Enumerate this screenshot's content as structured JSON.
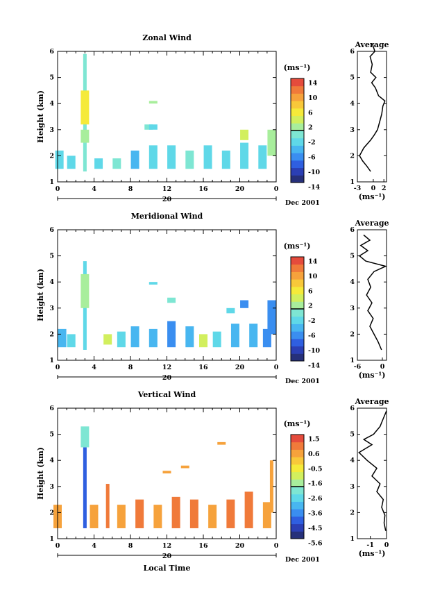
{
  "figure": {
    "date_label": "Dec 2001",
    "xlabel": "Local Time",
    "day_label": "20",
    "avg_title": "Average",
    "ylabel": "Height (km)",
    "unit": "(ms⁻¹)"
  },
  "panels": [
    {
      "title": "Zonal Wind",
      "colorbar_ticks": [
        "14",
        "10",
        "6",
        "2",
        "-2",
        "-6",
        "-10",
        "-14"
      ],
      "avg_xticks": [
        "-3",
        "0",
        "2"
      ]
    },
    {
      "title": "Meridional Wind",
      "colorbar_ticks": [
        "14",
        "10",
        "6",
        "2",
        "-2",
        "-6",
        "-10",
        "-14"
      ],
      "avg_xticks": [
        "-6",
        "0"
      ]
    },
    {
      "title": "Vertical Wind",
      "colorbar_ticks": [
        "1.5",
        "0.6",
        "-0.5",
        "-1.6",
        "-2.6",
        "-3.6",
        "-4.5",
        "-5.6"
      ],
      "avg_xticks": [
        "-1",
        "0"
      ]
    }
  ],
  "chart_data": [
    {
      "type": "heatmap",
      "title": "Zonal Wind",
      "xlabel": "",
      "ylabel": "Height (km)",
      "x_ticks": [
        "0",
        "4",
        "8",
        "12",
        "16",
        "20",
        "0"
      ],
      "x_range_hours": [
        0,
        24
      ],
      "y_ticks": [
        "1",
        "2",
        "3",
        "4",
        "5",
        "6"
      ],
      "ylim": [
        1,
        6
      ],
      "colorbar_unit": "(ms⁻¹)",
      "colorbar_range": [
        -16,
        16
      ],
      "cells": [
        {
          "t": 3.0,
          "h0": 1.4,
          "h1": 5.9,
          "v": -2
        },
        {
          "t": 3.0,
          "h0": 3.2,
          "h1": 4.5,
          "v": 6
        },
        {
          "t": 3.0,
          "h0": 2.5,
          "h1": 3.0,
          "v": 2
        },
        {
          "t": 0.2,
          "h0": 1.5,
          "h1": 2.2,
          "v": -3
        },
        {
          "t": 1.5,
          "h0": 1.5,
          "h1": 2.0,
          "v": -4
        },
        {
          "t": 4.5,
          "h0": 1.5,
          "h1": 1.9,
          "v": -3
        },
        {
          "t": 6.5,
          "h0": 1.5,
          "h1": 1.9,
          "v": -2
        },
        {
          "t": 8.5,
          "h0": 1.5,
          "h1": 2.2,
          "v": -5
        },
        {
          "t": 10.5,
          "h0": 1.5,
          "h1": 2.4,
          "v": -4
        },
        {
          "t": 12.5,
          "h0": 1.5,
          "h1": 2.4,
          "v": -3
        },
        {
          "t": 14.5,
          "h0": 1.5,
          "h1": 2.2,
          "v": -2
        },
        {
          "t": 16.5,
          "h0": 1.5,
          "h1": 2.4,
          "v": -3
        },
        {
          "t": 18.5,
          "h0": 1.5,
          "h1": 2.2,
          "v": -4
        },
        {
          "t": 20.5,
          "h0": 1.5,
          "h1": 2.5,
          "v": -3
        },
        {
          "t": 22.5,
          "h0": 1.5,
          "h1": 2.4,
          "v": -3
        },
        {
          "t": 10.0,
          "h0": 3.0,
          "h1": 3.2,
          "v": -2
        },
        {
          "t": 10.5,
          "h0": 3.0,
          "h1": 3.2,
          "v": -3
        },
        {
          "t": 10.5,
          "h0": 4.0,
          "h1": 4.1,
          "v": 2
        },
        {
          "t": 20.5,
          "h0": 2.6,
          "h1": 3.0,
          "v": 4
        },
        {
          "t": 23.5,
          "h0": 2.0,
          "h1": 3.0,
          "v": 2
        }
      ]
    },
    {
      "type": "heatmap",
      "title": "Meridional Wind",
      "xlabel": "",
      "ylabel": "Height (km)",
      "x_ticks": [
        "0",
        "4",
        "8",
        "12",
        "16",
        "20",
        "0"
      ],
      "x_range_hours": [
        0,
        24
      ],
      "y_ticks": [
        "1",
        "2",
        "3",
        "4",
        "5",
        "6"
      ],
      "ylim": [
        1,
        6
      ],
      "colorbar_unit": "(ms⁻¹)",
      "colorbar_range": [
        -16,
        16
      ],
      "cells": [
        {
          "t": 3.0,
          "h0": 1.4,
          "h1": 4.8,
          "v": -4
        },
        {
          "t": 3.0,
          "h0": 3.0,
          "h1": 4.3,
          "v": 0
        },
        {
          "t": 0.5,
          "h0": 1.5,
          "h1": 2.2,
          "v": -5
        },
        {
          "t": 1.5,
          "h0": 1.5,
          "h1": 2.0,
          "v": -4
        },
        {
          "t": 5.5,
          "h0": 1.6,
          "h1": 2.0,
          "v": 4
        },
        {
          "t": 7.0,
          "h0": 1.5,
          "h1": 2.1,
          "v": -3
        },
        {
          "t": 8.5,
          "h0": 1.5,
          "h1": 2.3,
          "v": -6
        },
        {
          "t": 10.5,
          "h0": 1.5,
          "h1": 2.2,
          "v": -5
        },
        {
          "t": 12.5,
          "h0": 1.5,
          "h1": 2.5,
          "v": -7
        },
        {
          "t": 14.5,
          "h0": 1.5,
          "h1": 2.3,
          "v": -5
        },
        {
          "t": 16.0,
          "h0": 1.5,
          "h1": 2.0,
          "v": 3
        },
        {
          "t": 17.5,
          "h0": 1.5,
          "h1": 2.1,
          "v": -4
        },
        {
          "t": 19.5,
          "h0": 1.5,
          "h1": 2.4,
          "v": -6
        },
        {
          "t": 21.5,
          "h0": 1.5,
          "h1": 2.4,
          "v": -5
        },
        {
          "t": 23.0,
          "h0": 1.5,
          "h1": 2.2,
          "v": -8
        },
        {
          "t": 10.5,
          "h0": 3.9,
          "h1": 4.0,
          "v": -3
        },
        {
          "t": 12.5,
          "h0": 3.2,
          "h1": 3.4,
          "v": -2
        },
        {
          "t": 19.0,
          "h0": 2.8,
          "h1": 3.0,
          "v": -4
        },
        {
          "t": 20.5,
          "h0": 3.0,
          "h1": 3.3,
          "v": -7
        },
        {
          "t": 23.5,
          "h0": 2.0,
          "h1": 3.3,
          "v": -8
        }
      ]
    },
    {
      "type": "heatmap",
      "title": "Vertical Wind",
      "xlabel": "Local Time",
      "ylabel": "Height (km)",
      "x_ticks": [
        "0",
        "4",
        "8",
        "12",
        "16",
        "20",
        "0"
      ],
      "x_range_hours": [
        0,
        24
      ],
      "y_ticks": [
        "1",
        "2",
        "3",
        "4",
        "5",
        "6"
      ],
      "ylim": [
        1,
        6
      ],
      "colorbar_unit": "(ms⁻¹)",
      "colorbar_range": [
        -6,
        2
      ],
      "cells": [
        {
          "t": 0.0,
          "h0": 1.4,
          "h1": 2.3,
          "v": 0.8
        },
        {
          "t": 3.0,
          "h0": 1.4,
          "h1": 4.5,
          "v": -4.8
        },
        {
          "t": 3.0,
          "h0": 4.5,
          "h1": 5.3,
          "v": -2.5
        },
        {
          "t": 4.0,
          "h0": 1.4,
          "h1": 2.3,
          "v": 0.6
        },
        {
          "t": 5.5,
          "h0": 1.4,
          "h1": 3.1,
          "v": 1.3
        },
        {
          "t": 7.0,
          "h0": 1.4,
          "h1": 2.3,
          "v": 0.7
        },
        {
          "t": 9.0,
          "h0": 1.4,
          "h1": 2.5,
          "v": 0.9
        },
        {
          "t": 11.0,
          "h0": 1.4,
          "h1": 2.3,
          "v": 0.7
        },
        {
          "t": 13.0,
          "h0": 1.4,
          "h1": 2.6,
          "v": 1.0
        },
        {
          "t": 15.0,
          "h0": 1.4,
          "h1": 2.5,
          "v": 1.1
        },
        {
          "t": 17.0,
          "h0": 1.4,
          "h1": 2.3,
          "v": 0.8
        },
        {
          "t": 19.0,
          "h0": 1.4,
          "h1": 2.5,
          "v": 0.9
        },
        {
          "t": 21.0,
          "h0": 1.4,
          "h1": 2.8,
          "v": 1.1
        },
        {
          "t": 23.0,
          "h0": 1.4,
          "h1": 2.4,
          "v": 0.8
        },
        {
          "t": 12.0,
          "h0": 3.5,
          "h1": 3.6,
          "v": 0.6
        },
        {
          "t": 14.0,
          "h0": 3.7,
          "h1": 3.8,
          "v": 0.6
        },
        {
          "t": 18.0,
          "h0": 4.6,
          "h1": 4.7,
          "v": 0.8
        },
        {
          "t": 23.5,
          "h0": 2.0,
          "h1": 4.0,
          "v": 0.5
        }
      ]
    }
  ],
  "average_profiles": [
    {
      "panel": "Zonal Wind",
      "x_ticks": [
        "-3",
        "0",
        "2"
      ],
      "xlim": [
        -3,
        2.5
      ],
      "y_ticks": [
        "1",
        "2",
        "3",
        "4",
        "5",
        "6"
      ],
      "ylim": [
        1,
        6
      ],
      "xlabel": "(ms⁻¹)",
      "points": [
        [
          -0.5,
          1.4
        ],
        [
          -1.2,
          1.6
        ],
        [
          -2.0,
          1.8
        ],
        [
          -2.6,
          2.0
        ],
        [
          -1.8,
          2.3
        ],
        [
          -0.5,
          2.6
        ],
        [
          0.2,
          2.8
        ],
        [
          0.8,
          3.0
        ],
        [
          1.2,
          3.3
        ],
        [
          1.6,
          3.6
        ],
        [
          1.8,
          3.9
        ],
        [
          2.2,
          4.1
        ],
        [
          1.0,
          4.3
        ],
        [
          0.4,
          4.6
        ],
        [
          -0.3,
          4.8
        ],
        [
          0.5,
          5.0
        ],
        [
          -0.5,
          5.2
        ],
        [
          -0.2,
          5.5
        ],
        [
          -0.6,
          5.8
        ],
        [
          0.3,
          6.0
        ],
        [
          -0.2,
          6.3
        ]
      ]
    },
    {
      "panel": "Meridional Wind",
      "x_ticks": [
        "-6",
        "0"
      ],
      "xlim": [
        -6,
        1
      ],
      "y_ticks": [
        "1",
        "2",
        "3",
        "4",
        "5",
        "6"
      ],
      "ylim": [
        1,
        6
      ],
      "xlabel": "(ms⁻¹)",
      "points": [
        [
          -0.2,
          1.4
        ],
        [
          -1.0,
          1.7
        ],
        [
          -2.0,
          2.0
        ],
        [
          -3.0,
          2.3
        ],
        [
          -2.2,
          2.6
        ],
        [
          -3.5,
          2.9
        ],
        [
          -2.5,
          3.2
        ],
        [
          -3.8,
          3.5
        ],
        [
          -2.8,
          3.8
        ],
        [
          -3.5,
          4.1
        ],
        [
          -2.0,
          4.4
        ],
        [
          0.8,
          4.6
        ],
        [
          -4.0,
          4.8
        ],
        [
          -5.5,
          5.0
        ],
        [
          -3.5,
          5.2
        ],
        [
          -5.2,
          5.4
        ],
        [
          -3.0,
          5.6
        ],
        [
          -4.5,
          5.8
        ]
      ]
    },
    {
      "panel": "Vertical Wind",
      "x_ticks": [
        "-1",
        "0"
      ],
      "xlim": [
        -1.8,
        0
      ],
      "y_ticks": [
        "1",
        "2",
        "3",
        "4",
        "5",
        "6"
      ],
      "ylim": [
        1,
        6
      ],
      "xlabel": "(ms⁻¹)",
      "points": [
        [
          -0.05,
          1.3
        ],
        [
          -0.15,
          1.6
        ],
        [
          -0.1,
          1.9
        ],
        [
          -0.3,
          2.2
        ],
        [
          -0.2,
          2.5
        ],
        [
          -0.6,
          2.8
        ],
        [
          -0.4,
          3.1
        ],
        [
          -0.9,
          3.4
        ],
        [
          -0.6,
          3.7
        ],
        [
          -1.2,
          4.0
        ],
        [
          -1.7,
          4.3
        ],
        [
          -0.9,
          4.6
        ],
        [
          -1.4,
          4.8
        ],
        [
          -0.8,
          5.0
        ],
        [
          -0.4,
          5.3
        ],
        [
          -0.2,
          5.6
        ],
        [
          0.0,
          5.9
        ]
      ]
    }
  ]
}
